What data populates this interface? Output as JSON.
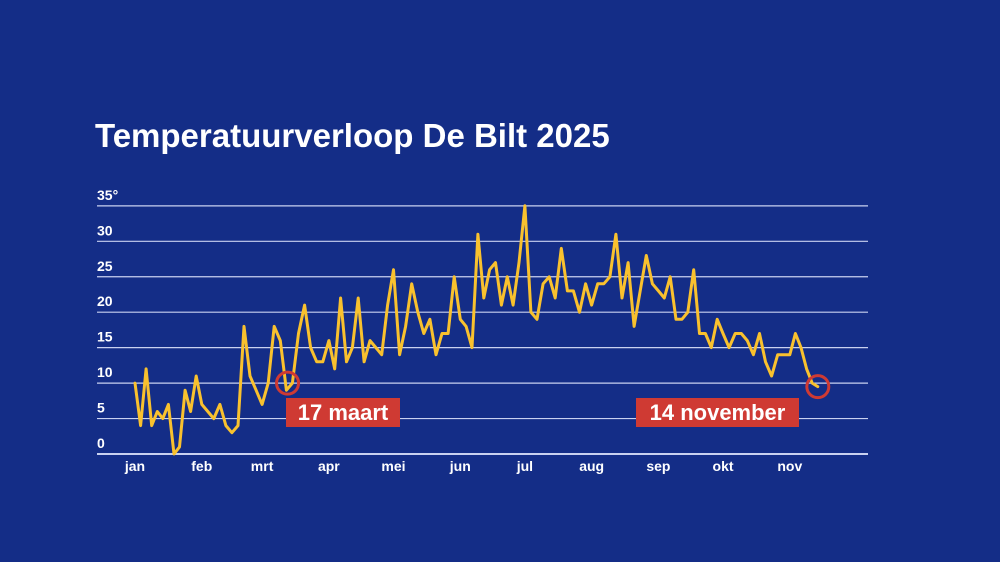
{
  "chart_data": {
    "type": "line",
    "title": "Temperatuurverloop De Bilt 2025",
    "xlabel": "",
    "ylabel": "",
    "year": 2025,
    "x_range": [
      "2025-01-01",
      "2025-11-14"
    ],
    "ylim": [
      0,
      35
    ],
    "y_ticks": [
      {
        "value": 0,
        "label": "0"
      },
      {
        "value": 5,
        "label": "5"
      },
      {
        "value": 10,
        "label": "10"
      },
      {
        "value": 15,
        "label": "15"
      },
      {
        "value": 20,
        "label": "20"
      },
      {
        "value": 25,
        "label": "25"
      },
      {
        "value": 30,
        "label": "30"
      },
      {
        "value": 35,
        "label": "35°"
      }
    ],
    "grid": true,
    "colors": {
      "background": "#142d87",
      "line": "#f9c12e",
      "grid": "#c9d1f0",
      "annotation": "#cf3a33"
    },
    "months": [
      {
        "label": "jan",
        "values": [
          10,
          4,
          12,
          4,
          6,
          5,
          7,
          0,
          1,
          9,
          6,
          11
        ]
      },
      {
        "label": "feb",
        "values": [
          7,
          6,
          5,
          7,
          4,
          3,
          4,
          18,
          11,
          9
        ]
      },
      {
        "label": "mrt",
        "values": [
          7,
          10,
          18,
          16,
          9,
          10,
          17,
          21,
          15,
          13,
          13
        ]
      },
      {
        "label": "apr",
        "values": [
          16,
          12,
          22,
          13,
          15,
          22,
          13,
          16,
          15,
          14,
          21
        ]
      },
      {
        "label": "mei",
        "values": [
          26,
          14,
          18,
          24,
          20,
          17,
          19,
          14,
          17,
          17,
          25
        ]
      },
      {
        "label": "jun",
        "values": [
          19,
          18,
          15,
          31,
          22,
          26,
          27,
          21,
          25,
          21,
          27
        ]
      },
      {
        "label": "jul",
        "values": [
          35,
          20,
          19,
          24,
          25,
          22,
          29,
          23,
          23,
          20,
          24
        ]
      },
      {
        "label": "aug",
        "values": [
          21,
          24,
          24,
          25,
          31,
          22,
          27,
          18,
          23,
          28,
          24
        ]
      },
      {
        "label": "sep",
        "values": [
          23,
          22,
          25,
          19,
          19,
          20,
          26,
          17,
          17,
          15,
          19
        ]
      },
      {
        "label": "okt",
        "values": [
          17,
          15,
          17,
          17,
          16,
          14,
          17,
          13,
          11,
          14,
          14
        ]
      },
      {
        "label": "nov",
        "values": [
          14,
          17,
          15,
          12,
          10,
          9.5
        ]
      }
    ],
    "annotations": [
      {
        "label": "17 maart",
        "date": "2025-03-17",
        "value": 10
      },
      {
        "label": "14 november",
        "date": "2025-11-14",
        "value": 9.5
      }
    ]
  }
}
